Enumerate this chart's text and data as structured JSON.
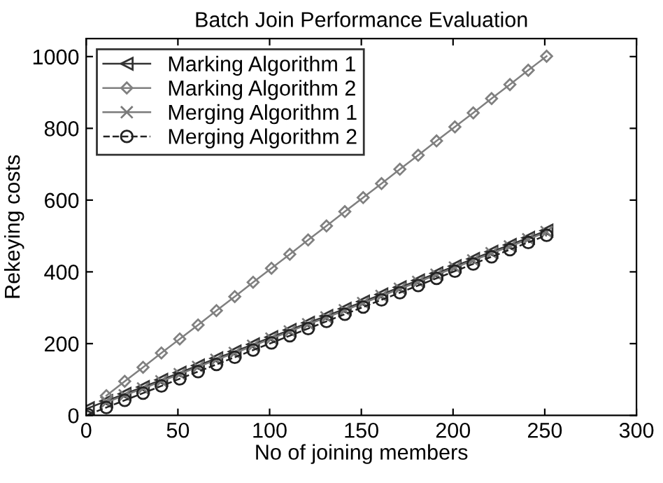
{
  "chart_data": {
    "type": "line",
    "title": "Batch Join Performance Evaluation",
    "xlabel": "No of joining members",
    "ylabel": "Rekeying costs",
    "x": [
      1,
      11,
      21,
      31,
      41,
      51,
      61,
      71,
      81,
      91,
      101,
      111,
      121,
      131,
      141,
      151,
      161,
      171,
      181,
      191,
      201,
      211,
      221,
      231,
      241,
      251
    ],
    "series": [
      {
        "name": "Marking Algorithm 1",
        "color": "#333333",
        "marker": "triangle",
        "line_style": "solid",
        "values": [
          20,
          40,
          60,
          79,
          99,
          119,
          139,
          159,
          178,
          198,
          218,
          238,
          258,
          277,
          297,
          317,
          337,
          357,
          376,
          396,
          416,
          436,
          456,
          475,
          495,
          515
        ]
      },
      {
        "name": "Marking Algorithm 2",
        "color": "#808080",
        "marker": "diamond",
        "line_style": "solid",
        "values": [
          null,
          55,
          95,
          134,
          174,
          213,
          252,
          292,
          331,
          371,
          410,
          449,
          489,
          528,
          568,
          607,
          646,
          686,
          725,
          765,
          804,
          843,
          883,
          922,
          962,
          1001
        ]
      },
      {
        "name": "Merging Algorithm 1",
        "color": "#7a7a7a",
        "marker": "cross",
        "line_style": "solid",
        "values": [
          null,
          36,
          56,
          75,
          95,
          115,
          135,
          155,
          174,
          194,
          214,
          234,
          254,
          273,
          293,
          313,
          333,
          353,
          372,
          392,
          412,
          432,
          452,
          471,
          491,
          511
        ]
      },
      {
        "name": "Merging Algorithm 2",
        "color": "#222222",
        "marker": "circle",
        "line_style": "dashed",
        "values": [
          2,
          22,
          42,
          62,
          82,
          102,
          122,
          142,
          162,
          182,
          202,
          222,
          242,
          262,
          282,
          302,
          322,
          342,
          362,
          382,
          402,
          422,
          442,
          462,
          482,
          502
        ]
      }
    ],
    "xlim": [
      0,
      300
    ],
    "xticks": [
      0,
      50,
      100,
      150,
      200,
      250,
      300
    ],
    "ylim": [
      0,
      1050
    ],
    "yticks": [
      0,
      200,
      400,
      600,
      800,
      1000
    ],
    "grid": false,
    "legend": "top left"
  }
}
